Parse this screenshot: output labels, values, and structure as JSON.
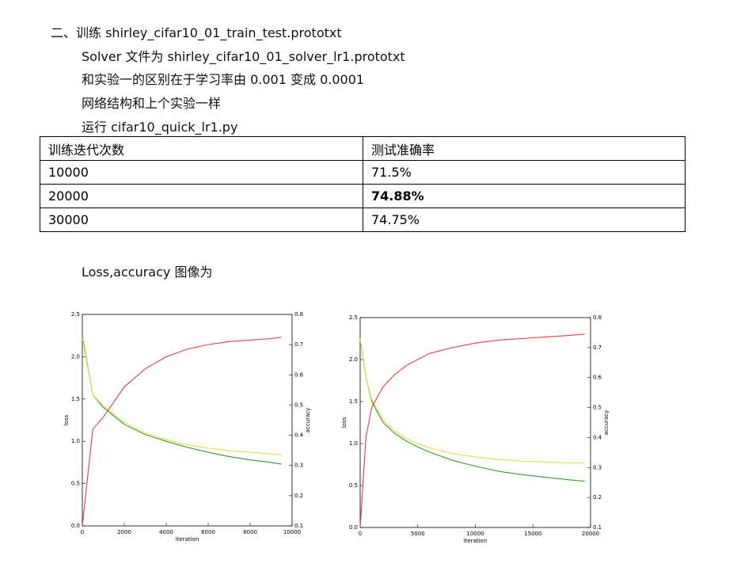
{
  "heading": "二、训练 shirley_cifar10_01_train_test.prototxt",
  "lines": [
    "Solver 文件为 shirley_cifar10_01_solver_lr1.prototxt",
    "和实验一的区别在于学习率由 0.001 变成 0.0001",
    "网络结构和上个实验一样",
    "运行 cifar10_quick_lr1.py"
  ],
  "table": {
    "header": [
      "训练迭代次数",
      "测试准确率"
    ],
    "rows": [
      [
        "10000",
        "71.5%"
      ],
      [
        "20000",
        "74.88%"
      ],
      [
        "30000",
        "74.75%"
      ]
    ]
  },
  "caption": "Loss,accuracy 图像为",
  "chart_data": [
    {
      "type": "line",
      "xlabel": "iteration",
      "ylabel": "loss",
      "y2label": "accuracy",
      "x": [
        0,
        500,
        1000,
        2000,
        3000,
        4000,
        5000,
        6000,
        7000,
        8000,
        9000,
        9500
      ],
      "xlim": [
        0,
        10000
      ],
      "xticks": [
        0,
        2000,
        4000,
        6000,
        8000,
        10000
      ],
      "ylim": [
        0,
        2.5
      ],
      "yticks": [
        {
          "value": 0,
          "label": "0.0"
        },
        0.5,
        {
          "value": 1,
          "label": "1.0"
        },
        1.5,
        {
          "value": 2,
          "label": "2.0"
        },
        2.5
      ],
      "y2lim": [
        0.1,
        0.8
      ],
      "y2ticks": [
        0.1,
        0.2,
        0.3,
        0.4,
        0.5,
        0.6,
        0.7,
        0.8
      ],
      "series": [
        {
          "color": "#2ca02c",
          "values": [
            2.25,
            1.55,
            1.4,
            1.2,
            1.08,
            1.0,
            0.93,
            0.87,
            0.82,
            0.78,
            0.75,
            0.73
          ]
        },
        {
          "color": "#e0e040",
          "values": [
            2.22,
            1.55,
            1.42,
            1.22,
            1.1,
            1.02,
            0.96,
            0.92,
            0.89,
            0.87,
            0.85,
            0.84
          ]
        },
        {
          "color": "#e04040",
          "axis": "y2",
          "values": [
            0.1,
            0.42,
            0.46,
            0.56,
            0.62,
            0.66,
            0.685,
            0.7,
            0.71,
            0.715,
            0.72,
            0.725
          ]
        }
      ]
    },
    {
      "type": "line",
      "xlabel": "iteration",
      "ylabel": "loss",
      "y2label": "accuracy",
      "x": [
        0,
        500,
        1000,
        2000,
        3000,
        4000,
        5000,
        6000,
        8000,
        10000,
        12000,
        14000,
        16000,
        18000,
        19500
      ],
      "xlim": [
        0,
        20000
      ],
      "xticks": [
        0,
        5000,
        10000,
        15000,
        20000
      ],
      "ylim": [
        0,
        2.5
      ],
      "yticks": [
        {
          "value": 0,
          "label": "0.0"
        },
        0.5,
        {
          "value": 1,
          "label": "1.0"
        },
        1.5,
        {
          "value": 2,
          "label": "2.0"
        },
        2.5
      ],
      "y2lim": [
        0.1,
        0.8
      ],
      "y2ticks": [
        0.1,
        0.2,
        0.3,
        0.4,
        0.5,
        0.6,
        0.7,
        0.8
      ],
      "series": [
        {
          "color": "#2ca02c",
          "values": [
            2.25,
            1.8,
            1.5,
            1.25,
            1.12,
            1.03,
            0.96,
            0.9,
            0.8,
            0.73,
            0.67,
            0.63,
            0.6,
            0.57,
            0.55
          ]
        },
        {
          "color": "#e0e040",
          "values": [
            2.25,
            1.8,
            1.52,
            1.28,
            1.15,
            1.06,
            1.0,
            0.95,
            0.88,
            0.84,
            0.81,
            0.79,
            0.78,
            0.77,
            0.77
          ]
        },
        {
          "color": "#e04040",
          "axis": "y2",
          "values": [
            0.1,
            0.4,
            0.5,
            0.57,
            0.61,
            0.64,
            0.66,
            0.68,
            0.7,
            0.715,
            0.725,
            0.73,
            0.735,
            0.74,
            0.745
          ]
        }
      ]
    }
  ]
}
